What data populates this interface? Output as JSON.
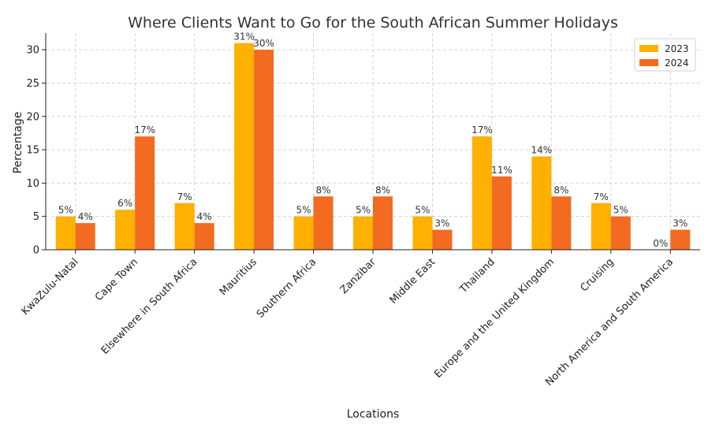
{
  "chart_data": {
    "type": "bar",
    "title": "Where Clients Want to Go for the South African Summer Holidays",
    "xlabel": "Locations",
    "ylabel": "Percentage",
    "ylim": [
      0,
      32.5
    ],
    "yticks": [
      0,
      5,
      10,
      15,
      20,
      25,
      30
    ],
    "grid": true,
    "legend_position": "top-right",
    "categories": [
      "KwaZulu-Natal",
      "Cape Town",
      "Elsewhere in South Africa",
      "Mauritius",
      "Southern Africa",
      "Zanzibar",
      "Middle East",
      "Thailand",
      "Europe and the United Kingdom",
      "Cruising",
      "North America and South America"
    ],
    "series": [
      {
        "name": "2023",
        "color": "#FFB000",
        "values": [
          5,
          6,
          7,
          31,
          5,
          5,
          5,
          17,
          14,
          7,
          0
        ],
        "labels": [
          "5%",
          "6%",
          "7%",
          "31%",
          "5%",
          "5%",
          "5%",
          "17%",
          "14%",
          "7%",
          "0%"
        ]
      },
      {
        "name": "2024",
        "color": "#F26B21",
        "values": [
          4,
          17,
          4,
          30,
          8,
          8,
          3,
          11,
          8,
          5,
          3
        ],
        "labels": [
          "4%",
          "17%",
          "4%",
          "30%",
          "8%",
          "8%",
          "3%",
          "11%",
          "8%",
          "5%",
          "3%"
        ]
      }
    ]
  }
}
